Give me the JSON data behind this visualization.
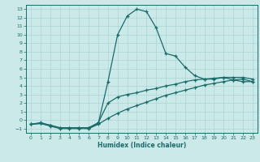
{
  "xlabel": "Humidex (Indice chaleur)",
  "xlim": [
    -0.5,
    23.5
  ],
  "ylim": [
    -1.5,
    13.5
  ],
  "xticks": [
    0,
    1,
    2,
    3,
    4,
    5,
    6,
    7,
    8,
    9,
    10,
    11,
    12,
    13,
    14,
    15,
    16,
    17,
    18,
    19,
    20,
    21,
    22,
    23
  ],
  "yticks": [
    -1,
    0,
    1,
    2,
    3,
    4,
    5,
    6,
    7,
    8,
    9,
    10,
    11,
    12,
    13
  ],
  "bg_color": "#cce9e9",
  "line_color": "#1a6b6b",
  "grid_color": "#aad4d4",
  "line1_x": [
    0,
    1,
    2,
    3,
    4,
    5,
    6,
    7,
    8,
    9,
    10,
    11,
    12,
    13,
    14,
    15,
    16,
    17,
    18,
    19,
    20,
    21,
    22,
    23
  ],
  "line1_y": [
    -0.5,
    -0.3,
    -0.6,
    -0.9,
    -0.9,
    -0.9,
    -0.9,
    -0.4,
    4.5,
    10.0,
    12.2,
    13.0,
    12.7,
    10.8,
    7.8,
    7.5,
    6.2,
    5.2,
    4.8,
    4.8,
    5.0,
    4.7,
    4.5,
    4.5
  ],
  "line2_x": [
    0,
    1,
    2,
    3,
    4,
    5,
    6,
    7,
    8,
    9,
    10,
    11,
    12,
    13,
    14,
    15,
    16,
    17,
    18,
    19,
    20,
    21,
    22,
    23
  ],
  "line2_y": [
    -0.5,
    -0.4,
    -0.6,
    -0.9,
    -0.9,
    -0.9,
    -0.9,
    -0.3,
    2.0,
    2.7,
    3.0,
    3.2,
    3.5,
    3.7,
    4.0,
    4.2,
    4.5,
    4.7,
    4.8,
    4.9,
    5.0,
    5.0,
    5.0,
    4.8
  ],
  "line3_x": [
    0,
    1,
    2,
    3,
    4,
    5,
    6,
    7,
    8,
    9,
    10,
    11,
    12,
    13,
    14,
    15,
    16,
    17,
    18,
    19,
    20,
    21,
    22,
    23
  ],
  "line3_y": [
    -0.5,
    -0.4,
    -0.7,
    -1.0,
    -1.0,
    -1.0,
    -1.0,
    -0.5,
    0.2,
    0.8,
    1.3,
    1.7,
    2.1,
    2.5,
    2.9,
    3.2,
    3.5,
    3.8,
    4.1,
    4.3,
    4.5,
    4.7,
    4.8,
    4.5
  ]
}
